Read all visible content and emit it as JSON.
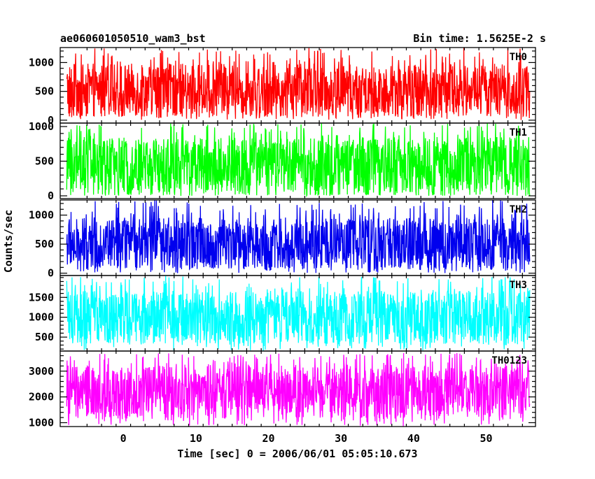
{
  "chart_data": {
    "type": "line",
    "title_left": "ae060601050510_wam3_bst",
    "title_right": "Bin time: 1.5625E-2 s",
    "ylabel": "Counts/sec",
    "xlabel": "Time [sec] 0 = 2006/06/01 05:05:10.673",
    "xlim": [
      -8.7,
      56.8
    ],
    "data_xrange": [
      -7.8,
      56.0
    ],
    "x_ticks": [
      0,
      10,
      20,
      30,
      40,
      50
    ],
    "x_tick_labels": [
      "0",
      "10",
      "20",
      "30",
      "40",
      "50"
    ],
    "grid": false,
    "panels": [
      {
        "name": "TH0",
        "color": "#ff0000",
        "ylim": [
          -50,
          1260
        ],
        "y_ticks": [
          0,
          500,
          1000
        ],
        "y_tick_labels": [
          "0",
          "500",
          "1000"
        ],
        "band": [
          80,
          1000
        ],
        "mean": 520,
        "spikes_high": 1260,
        "spikes_low": 0
      },
      {
        "name": "TH1",
        "color": "#00ff00",
        "ylim": [
          -40,
          1050
        ],
        "y_ticks": [
          0,
          500,
          1000
        ],
        "y_tick_labels": [
          "0",
          "500",
          "1000"
        ],
        "band": [
          20,
          860
        ],
        "mean": 430,
        "spikes_high": 1050,
        "spikes_low": 0
      },
      {
        "name": "TH2",
        "color": "#0000ee",
        "ylim": [
          -40,
          1260
        ],
        "y_ticks": [
          0,
          500,
          1000
        ],
        "y_tick_labels": [
          "0",
          "500",
          "1000"
        ],
        "band": [
          100,
          980
        ],
        "mean": 520,
        "spikes_high": 1260,
        "spikes_low": 0
      },
      {
        "name": "TH3",
        "color": "#00ffff",
        "ylim": [
          150,
          2050
        ],
        "y_ticks": [
          500,
          1000,
          1500
        ],
        "y_tick_labels": [
          "500",
          "1000",
          "1500"
        ],
        "band": [
          350,
          1680
        ],
        "mean": 1000,
        "spikes_high": 2050,
        "spikes_low": 160
      },
      {
        "name": "TH0123",
        "color": "#ff00ff",
        "ylim": [
          850,
          3780
        ],
        "y_ticks": [
          1000,
          2000,
          3000
        ],
        "y_tick_labels": [
          "1000",
          "2000",
          "3000"
        ],
        "band": [
          1150,
          3250
        ],
        "mean": 2200,
        "spikes_high": 3700,
        "spikes_low": 860
      }
    ]
  }
}
